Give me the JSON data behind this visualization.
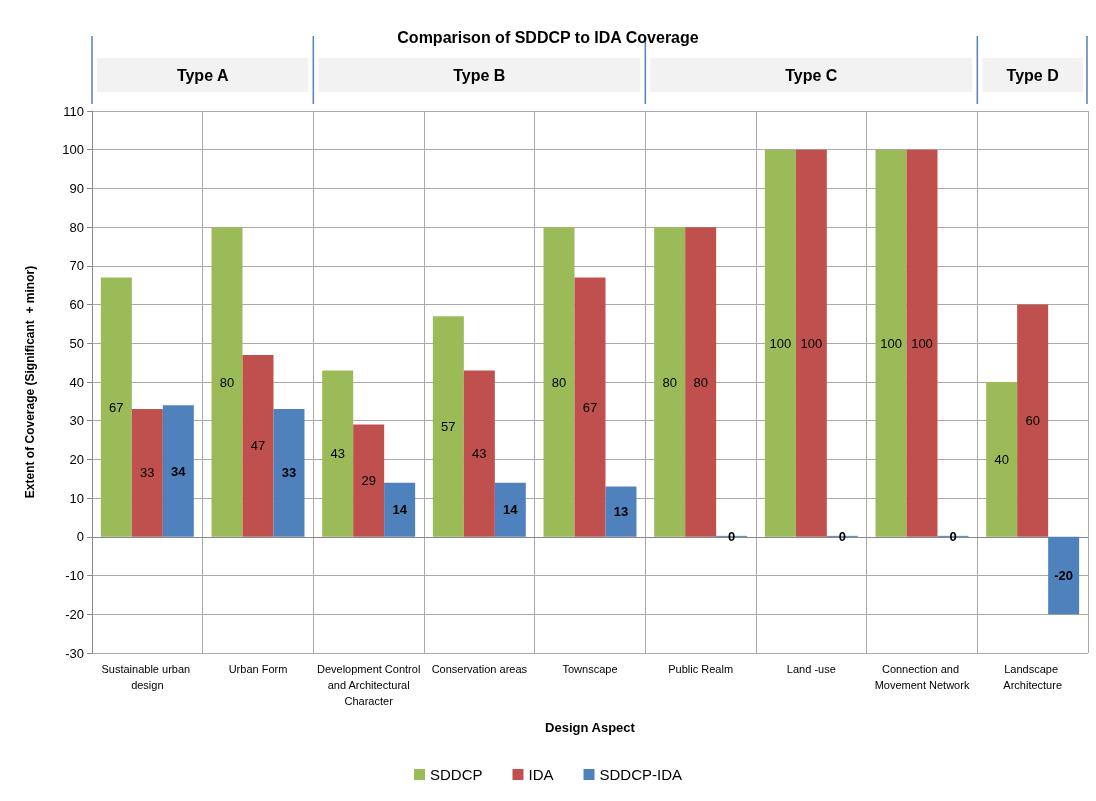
{
  "chart_data": {
    "type": "bar",
    "title": "Comparison of SDDCP to IDA Coverage",
    "xlabel": "Design Aspect",
    "ylabel": "Extent of Coverage (Significant  + minor)",
    "categories": [
      "Sustainable urban design",
      "Urban Form",
      "Development Control and Architectural Character",
      "Conservation areas",
      "Townscape",
      "Public Realm",
      "Land -use",
      "Connection and Movement Network",
      "Landscape Architecture"
    ],
    "series": [
      {
        "name": "SDDCP",
        "color": "#9bbb59",
        "values": [
          67,
          80,
          43,
          57,
          80,
          80,
          100,
          100,
          40
        ]
      },
      {
        "name": "IDA",
        "color": "#c0504d",
        "values": [
          33,
          47,
          29,
          43,
          67,
          80,
          100,
          100,
          60
        ]
      },
      {
        "name": "SDDCP-IDA",
        "color": "#4f81bd",
        "values": [
          34,
          33,
          14,
          14,
          13,
          0,
          0,
          0,
          -20
        ]
      }
    ],
    "ylim": [
      -30,
      110
    ],
    "yticks": [
      -30,
      -20,
      -10,
      0,
      10,
      20,
      30,
      40,
      50,
      60,
      70,
      80,
      90,
      100,
      110
    ],
    "grid": true,
    "legend": "bottom",
    "data_labels": true,
    "annotations": [
      "Type A",
      "Type B",
      "Type C",
      "Type D"
    ]
  }
}
